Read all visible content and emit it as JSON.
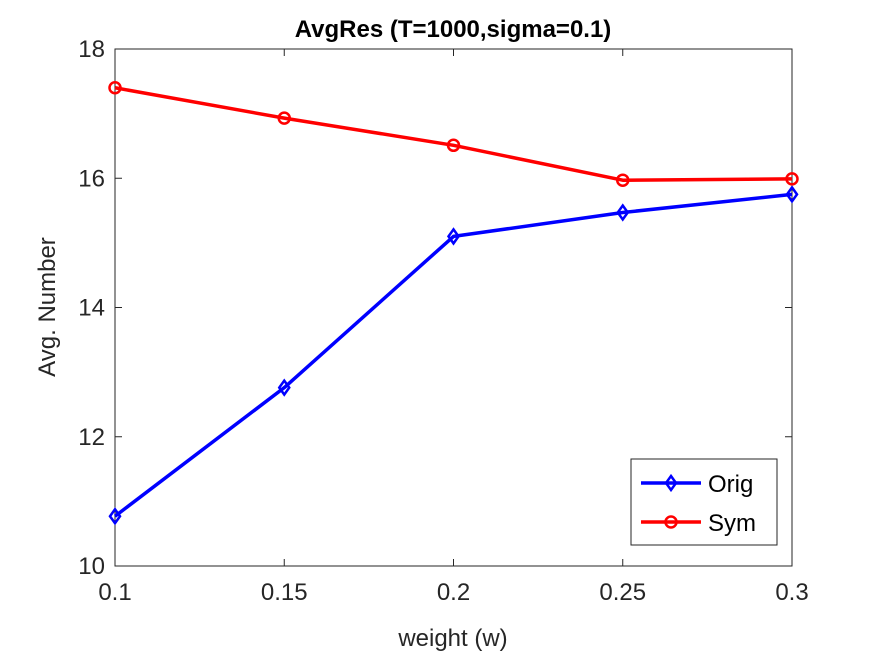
{
  "chart_data": {
    "type": "line",
    "title": "AvgRes (T=1000,sigma=0.1)",
    "xlabel": "weight (w)",
    "ylabel": "Avg. Number",
    "x": [
      0.1,
      0.15,
      0.2,
      0.25,
      0.3
    ],
    "xticks": [
      "0.1",
      "0.15",
      "0.2",
      "0.25",
      "0.3"
    ],
    "xlim": [
      0.1,
      0.3
    ],
    "ylim": [
      10,
      18
    ],
    "yticks": [
      10,
      12,
      14,
      16,
      18
    ],
    "grid": false,
    "legend_location": "bottom-right",
    "series": [
      {
        "name": "Orig",
        "color": "#0000FF",
        "marker": "diamond",
        "values": [
          10.77,
          12.76,
          15.1,
          15.47,
          15.75
        ]
      },
      {
        "name": "Sym",
        "color": "#FF0000",
        "marker": "circle",
        "values": [
          17.4,
          16.93,
          16.51,
          15.97,
          15.99
        ]
      }
    ]
  }
}
